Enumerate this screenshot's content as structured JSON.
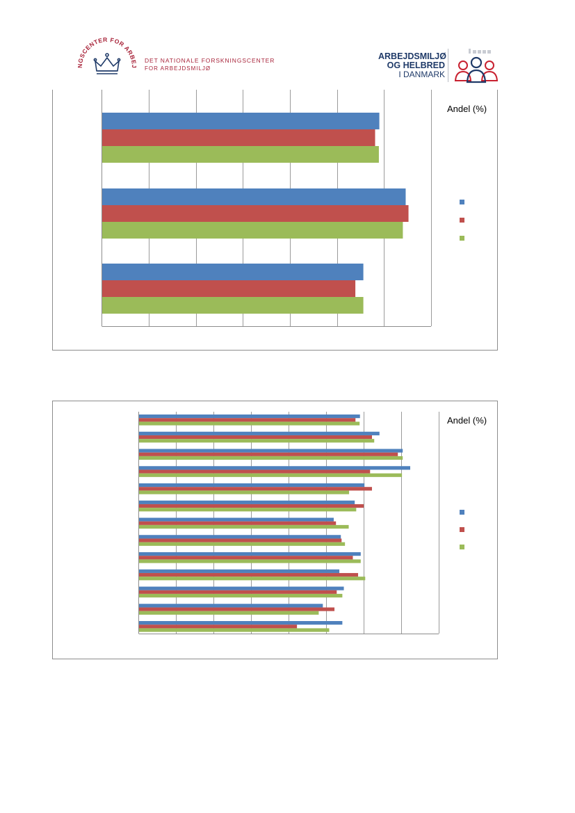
{
  "header": {
    "nfa_seal_text": "FORSKNINGSCENTER FOR ARBEJDSMILJØ",
    "nfa_line1": "DET NATIONALE FORSKNINGSCENTER",
    "nfa_line2": "FOR ARBEJDSMILJØ",
    "ahd_line1": "ARBEJDSMILJØ",
    "ahd_line2": "OG HELBRED",
    "ahd_line3": "I DANMARK"
  },
  "colors": {
    "series1": "#4f81bd",
    "series2": "#c0504d",
    "series3": "#9bbb59",
    "gridline": "#9a9a9a",
    "nfa_red": "#a8243a",
    "ahd_navy": "#1f3a68"
  },
  "chart_data": [
    {
      "type": "bar",
      "orientation": "horizontal",
      "xlabel": "Andel (%)",
      "xlim": [
        0,
        70
      ],
      "x_tick_step": 10,
      "x_tick_labels_visible": false,
      "category_labels_visible": false,
      "grid": true,
      "legend": "right",
      "legend_labels_visible": false,
      "categories": [
        "",
        "",
        ""
      ],
      "series": [
        {
          "color": "#4f81bd",
          "values": [
            59,
            64.6,
            55.6
          ]
        },
        {
          "color": "#c0504d",
          "values": [
            58.1,
            65.2,
            53.9
          ]
        },
        {
          "color": "#9bbb59",
          "values": [
            58.9,
            64,
            55.6
          ]
        }
      ]
    },
    {
      "type": "bar",
      "orientation": "horizontal",
      "xlabel": "Andel (%)",
      "xlim": [
        0,
        80
      ],
      "x_tick_step": 10,
      "x_tick_labels_visible": false,
      "category_labels_visible": false,
      "grid": true,
      "legend": "right",
      "legend_labels_visible": false,
      "categories": [
        "",
        "",
        "",
        "",
        "",
        "",
        "",
        "",
        "",
        "",
        "",
        "",
        ""
      ],
      "series": [
        {
          "color": "#4f81bd",
          "values": [
            59,
            64.2,
            70.4,
            72.4,
            60.2,
            57.6,
            52,
            53.9,
            59.2,
            53.5,
            54.7,
            49.1,
            54.3
          ]
        },
        {
          "color": "#c0504d",
          "values": [
            57.8,
            62.2,
            69.1,
            61.7,
            62.2,
            60,
            52.6,
            54.1,
            57.1,
            58.5,
            52.8,
            52.2,
            42.2
          ]
        },
        {
          "color": "#9bbb59",
          "values": [
            58.9,
            62.8,
            70.4,
            70.2,
            56.1,
            58,
            56,
            55,
            59.2,
            60.4,
            54.3,
            48,
            50.8
          ]
        }
      ]
    }
  ]
}
